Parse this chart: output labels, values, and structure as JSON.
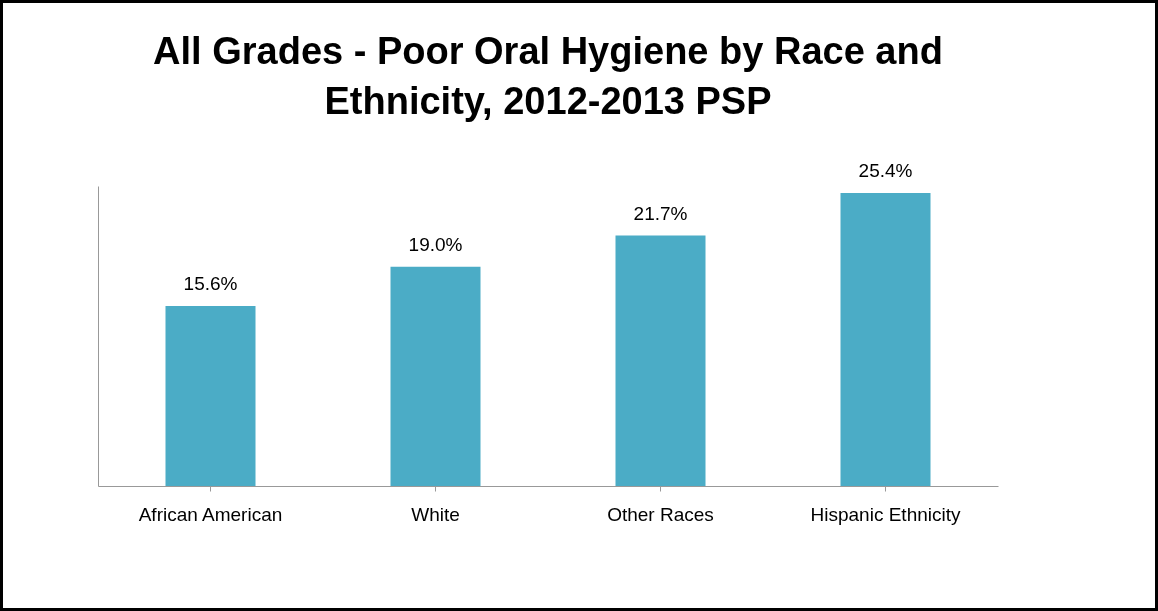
{
  "chart_data": {
    "type": "bar",
    "title": "All Grades - Poor Oral Hygiene by Race and Ethnicity, 2012-2013 PSP",
    "categories": [
      "African American",
      "White",
      "Other Races",
      "Hispanic Ethnicity"
    ],
    "values": [
      15.6,
      19.0,
      21.7,
      25.4
    ],
    "value_labels": [
      "15.6%",
      "19.0%",
      "21.7%",
      "25.4%"
    ],
    "color": "#4bacc6",
    "grid": false
  }
}
